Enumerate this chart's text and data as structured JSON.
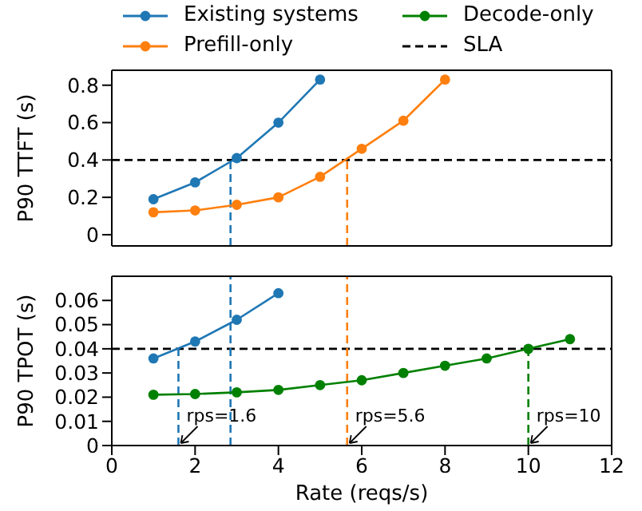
{
  "chart_data": [
    {
      "type": "line",
      "ylabel": "P90 TTFT (s)",
      "xlim": [
        0,
        12
      ],
      "xticks": [
        0,
        2,
        4,
        6,
        8,
        10,
        12
      ],
      "ylim": [
        -0.06,
        0.88
      ],
      "yticks": [
        0,
        0.2,
        0.4,
        0.6,
        0.8
      ],
      "tick_labels": "y",
      "legend": "top",
      "marker": "circle",
      "line_style": "solid",
      "grid": false,
      "series": [
        {
          "name": "Existing systems",
          "color": "#1f77b4",
          "x": [
            1,
            2,
            3,
            4,
            5
          ],
          "values": [
            0.19,
            0.28,
            0.41,
            0.6,
            0.83
          ]
        },
        {
          "name": "Prefill-only",
          "color": "#ff7f0e",
          "x": [
            1,
            2,
            3,
            4,
            5,
            6,
            7,
            8
          ],
          "values": [
            0.12,
            0.13,
            0.16,
            0.2,
            0.31,
            0.46,
            0.61,
            0.83
          ]
        }
      ],
      "ref_lines": [
        {
          "axis": "y",
          "value": 0.4,
          "label": "SLA",
          "color": "#000000",
          "line_style": "dashed"
        },
        {
          "axis": "x",
          "value": 2.85,
          "color": "#1f77b4",
          "line_style": "dashed"
        },
        {
          "axis": "x",
          "value": 5.65,
          "color": "#ff7f0e",
          "line_style": "dashed"
        }
      ]
    },
    {
      "type": "line",
      "ylabel": "P90 TPOT (s)",
      "xlabel": "Rate (reqs/s)",
      "xlim": [
        0,
        12
      ],
      "xticks": [
        0,
        2,
        4,
        6,
        8,
        10,
        12
      ],
      "ylim": [
        0,
        0.07
      ],
      "yticks": [
        0,
        0.01,
        0.02,
        0.03,
        0.04,
        0.05,
        0.06
      ],
      "marker": "circle",
      "line_style": "solid",
      "grid": false,
      "series": [
        {
          "name": "Existing systems",
          "color": "#1f77b4",
          "x": [
            1,
            2,
            3,
            4
          ],
          "values": [
            0.036,
            0.043,
            0.052,
            0.063
          ]
        },
        {
          "name": "Decode-only",
          "color": "#008000",
          "x": [
            1,
            2,
            3,
            4,
            5,
            6,
            7,
            8,
            9,
            10,
            11
          ],
          "values": [
            0.021,
            0.0213,
            0.022,
            0.023,
            0.025,
            0.027,
            0.03,
            0.033,
            0.036,
            0.04,
            0.044
          ]
        }
      ],
      "ref_lines": [
        {
          "axis": "y",
          "value": 0.04,
          "color": "#000000",
          "line_style": "dashed"
        },
        {
          "axis": "x",
          "value": 1.6,
          "color": "#1f77b4",
          "line_style": "dashed"
        },
        {
          "axis": "x",
          "value": 2.85,
          "color": "#1f77b4",
          "line_style": "dashed"
        },
        {
          "axis": "x",
          "value": 5.65,
          "color": "#ff7f0e",
          "line_style": "dashed"
        },
        {
          "axis": "x",
          "value": 10,
          "color": "#008000",
          "line_style": "dashed"
        }
      ],
      "annotations": [
        {
          "text": "rps=1.6",
          "x": 1.6,
          "y": 0
        },
        {
          "text": "rps=5.6",
          "x": 5.65,
          "y": 0
        },
        {
          "text": "rps=10",
          "x": 10,
          "y": 0
        }
      ]
    }
  ]
}
